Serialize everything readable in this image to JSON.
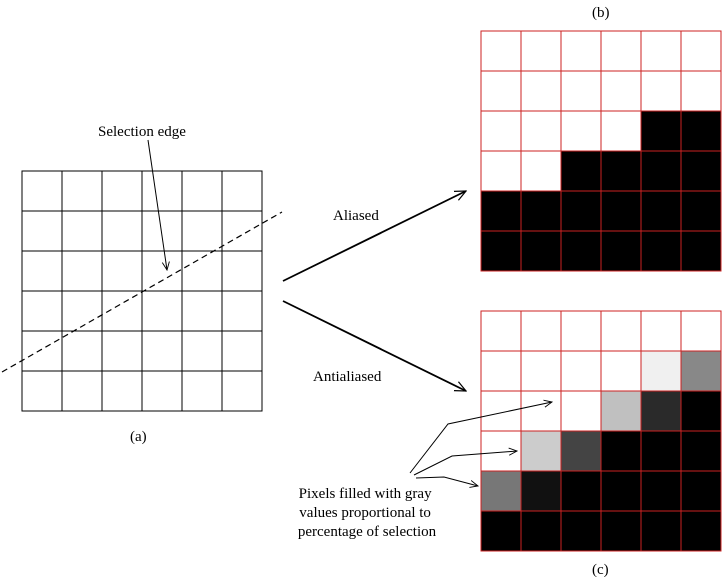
{
  "labels": {
    "a": "(a)",
    "b": "(b)",
    "c": "(c)",
    "selection_edge": "Selection edge",
    "aliased": "Aliased",
    "antialiased": "Antialiased",
    "pixels_note": [
      "Pixels filled with gray",
      "values proportional to",
      "percentage of selection"
    ]
  },
  "colors": {
    "grid_line": "#000000",
    "pixel_grid_line": "#cc2222",
    "edge_line": "#000000"
  },
  "grids": {
    "source": {
      "rows": 6,
      "cols": 6
    },
    "aliased": {
      "rows": 6,
      "cols": 6,
      "fill": [
        [
          0,
          0,
          0,
          0,
          0,
          0
        ],
        [
          0,
          0,
          0,
          0,
          0,
          0
        ],
        [
          0,
          0,
          0,
          0,
          1,
          1
        ],
        [
          0,
          0,
          1,
          1,
          1,
          1
        ],
        [
          1,
          1,
          1,
          1,
          1,
          1
        ],
        [
          1,
          1,
          1,
          1,
          1,
          1
        ]
      ]
    },
    "antialiased": {
      "rows": 6,
      "cols": 6,
      "gray": [
        [
          "#ffffff",
          "#ffffff",
          "#ffffff",
          "#ffffff",
          "#ffffff",
          "#ffffff"
        ],
        [
          "#ffffff",
          "#ffffff",
          "#ffffff",
          "#ffffff",
          "#f0f0f0",
          "#888888"
        ],
        [
          "#ffffff",
          "#ffffff",
          "#ffffff",
          "#c0c0c0",
          "#2a2a2a",
          "#000000"
        ],
        [
          "#ffffff",
          "#cccccc",
          "#444444",
          "#000000",
          "#000000",
          "#000000"
        ],
        [
          "#777777",
          "#111111",
          "#000000",
          "#000000",
          "#000000",
          "#000000"
        ],
        [
          "#000000",
          "#000000",
          "#000000",
          "#000000",
          "#000000",
          "#000000"
        ]
      ]
    }
  }
}
